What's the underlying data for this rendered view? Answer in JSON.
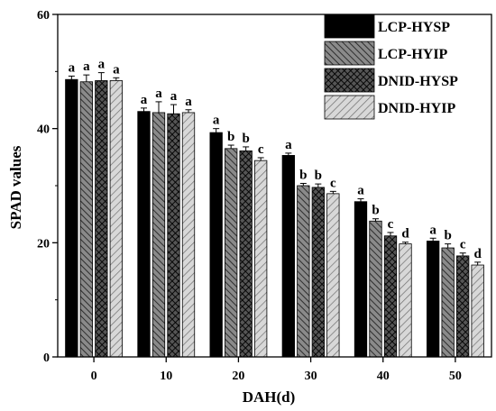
{
  "chart_data": {
    "type": "bar",
    "title": "",
    "xlabel": "DAH(d)",
    "ylabel": "SPAD values",
    "ylim": [
      0,
      60
    ],
    "yticks": [
      0,
      20,
      40,
      60
    ],
    "categories": [
      "0",
      "10",
      "20",
      "30",
      "40",
      "50"
    ],
    "legend_position": "top-right",
    "grid": false,
    "series": [
      {
        "name": "LCP-HYSP",
        "pattern": "solid-black",
        "color": "#000000",
        "values": [
          48.6,
          43.0,
          39.3,
          35.3,
          27.2,
          20.3
        ],
        "errors": [
          0.6,
          0.6,
          0.7,
          0.4,
          0.5,
          0.5
        ],
        "labels": [
          "a",
          "a",
          "a",
          "a",
          "a",
          "a"
        ]
      },
      {
        "name": "LCP-HYIP",
        "pattern": "dense-diagonal-dark-gray",
        "color": "#5a5a5a",
        "values": [
          48.2,
          42.8,
          36.5,
          30.0,
          23.8,
          19.1
        ],
        "errors": [
          1.2,
          1.9,
          0.6,
          0.4,
          0.4,
          0.7
        ],
        "labels": [
          "a",
          "a",
          "b",
          "b",
          "b",
          "b"
        ]
      },
      {
        "name": "DNID-HYSP",
        "pattern": "crosshatch",
        "color": "#2c2c2c",
        "values": [
          48.4,
          42.6,
          36.1,
          29.7,
          21.2,
          17.7
        ],
        "errors": [
          1.4,
          1.6,
          0.7,
          0.6,
          0.6,
          0.5
        ],
        "labels": [
          "a",
          "a",
          "b",
          "b",
          "c",
          "c"
        ]
      },
      {
        "name": "DNID-HYIP",
        "pattern": "sparse-diagonal-light-gray",
        "color": "#b5b5b5",
        "values": [
          48.4,
          42.8,
          34.4,
          28.6,
          19.8,
          16.1
        ],
        "errors": [
          0.5,
          0.5,
          0.5,
          0.4,
          0.3,
          0.5
        ],
        "labels": [
          "a",
          "a",
          "c",
          "c",
          "d",
          "d"
        ]
      }
    ]
  }
}
